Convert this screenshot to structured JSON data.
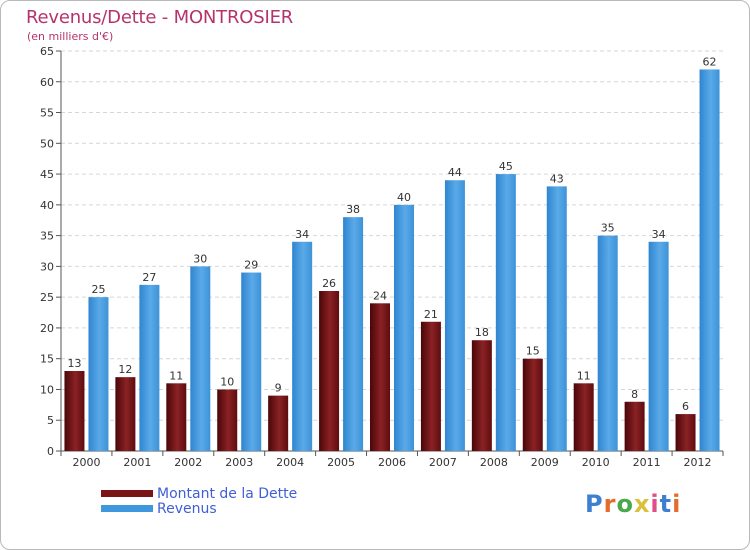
{
  "title": "Revenus/Dette - MONTROSIER",
  "subtitle": "(en milliers d'€)",
  "logo": {
    "text": "Proxiti",
    "letter_colors": [
      "#3d7fd0",
      "#e56d2c",
      "#4aa84a",
      "#d9c13a",
      "#e04e8a",
      "#3d7fd0",
      "#e56d2c"
    ]
  },
  "legend": [
    {
      "label": "Montant de la Dette",
      "color": "#7a1416"
    },
    {
      "label": "Revenus",
      "color": "#3f97dd"
    }
  ],
  "chart_data": {
    "type": "bar",
    "title": "Revenus/Dette - MONTROSIER",
    "subtitle": "(en milliers d'€)",
    "categories": [
      "2000",
      "2001",
      "2002",
      "2003",
      "2004",
      "2005",
      "2006",
      "2007",
      "2008",
      "2009",
      "2010",
      "2011",
      "2012"
    ],
    "series": [
      {
        "name": "Montant de la Dette",
        "color": "#7a1416",
        "values": [
          13,
          12,
          11,
          10,
          9,
          26,
          24,
          21,
          18,
          15,
          11,
          8,
          6
        ]
      },
      {
        "name": "Revenus",
        "color": "#3f97dd",
        "values": [
          25,
          27,
          30,
          29,
          34,
          38,
          40,
          44,
          45,
          43,
          35,
          34,
          62
        ]
      }
    ],
    "ylim": [
      0,
      65
    ],
    "yticks": [
      0,
      5,
      10,
      15,
      20,
      25,
      30,
      35,
      40,
      45,
      50,
      55,
      60,
      65
    ],
    "grid": true,
    "legend_position": "bottom-left"
  }
}
